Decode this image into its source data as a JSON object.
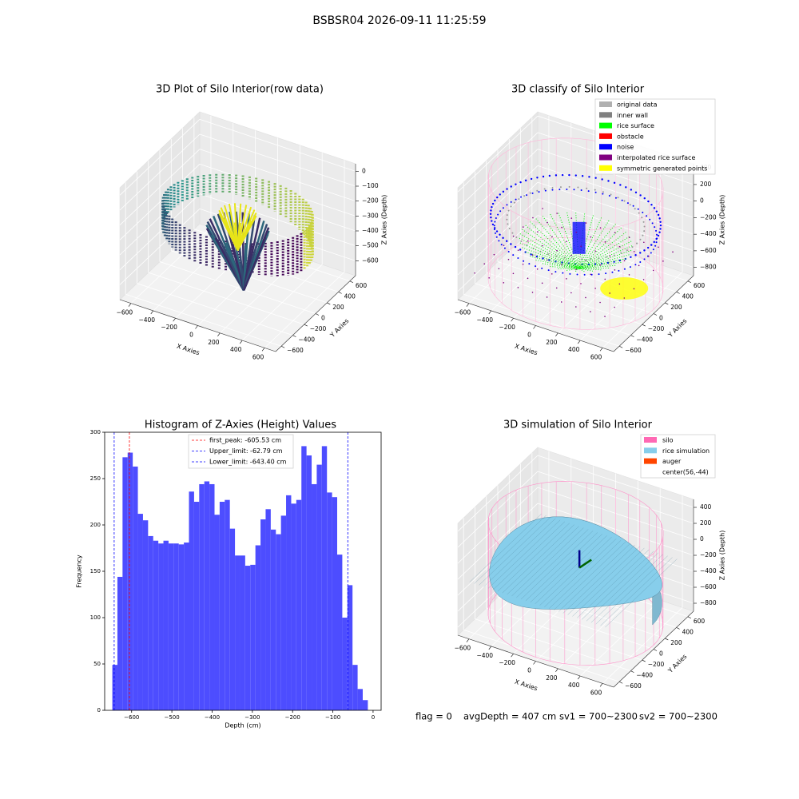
{
  "title": "BSBSR04 2026-09-11 11:25:59",
  "footer": [
    "flag = 0",
    "avgDepth = 407 cm",
    "sv1 = 700~2300",
    "sv2 = 700~2300"
  ],
  "chart_data": [
    {
      "type": "scatter3d",
      "title": "3D Plot of Silo Interior(row data)",
      "xlabel": "X Axies",
      "ylabel": "Y Axies",
      "zlabel": "Z Axies (Depth)",
      "xlim": [
        -700,
        700
      ],
      "ylim": [
        -700,
        700
      ],
      "zlim": [
        -700,
        50
      ],
      "xticks": [
        {
          "value": -600,
          "label": "−600"
        },
        {
          "value": -400,
          "label": "−400"
        },
        {
          "value": -200,
          "label": "−200"
        },
        0,
        200,
        400,
        600
      ],
      "yticks": [
        {
          "value": -600,
          "label": "−600"
        },
        {
          "value": -400,
          "label": "−400"
        },
        {
          "value": -200,
          "label": "−200"
        },
        0,
        200,
        400,
        600
      ],
      "zticks": [
        0,
        {
          "value": -100,
          "label": "−100"
        },
        {
          "value": -200,
          "label": "−200"
        },
        {
          "value": -300,
          "label": "−300"
        },
        {
          "value": -400,
          "label": "−400"
        },
        {
          "value": -500,
          "label": "−500"
        },
        {
          "value": -600,
          "label": "−600"
        }
      ]
    },
    {
      "type": "scatter3d",
      "title": "3D classify of Silo Interior",
      "xlabel": "X Axies",
      "ylabel": "Y Axies",
      "zlabel": "Z Axies (Depth)",
      "xlim": [
        -700,
        700
      ],
      "ylim": [
        -700,
        700
      ],
      "zlim": [
        -900,
        450
      ],
      "xticks": [
        {
          "value": -600,
          "label": "−600"
        },
        {
          "value": -400,
          "label": "−400"
        },
        {
          "value": -200,
          "label": "−200"
        },
        0,
        200,
        400,
        600
      ],
      "yticks": [
        {
          "value": -600,
          "label": "−600"
        },
        {
          "value": -400,
          "label": "−400"
        },
        {
          "value": -200,
          "label": "−200"
        },
        0,
        200,
        400,
        600
      ],
      "zticks": [
        400,
        200,
        0,
        {
          "value": -200,
          "label": "−200"
        },
        {
          "value": -400,
          "label": "−400"
        },
        {
          "value": -600,
          "label": "−600"
        },
        {
          "value": -800,
          "label": "−800"
        }
      ],
      "legend": [
        {
          "name": "original data",
          "color": "#b0b0b0"
        },
        {
          "name": "inner wall",
          "color": "#808080"
        },
        {
          "name": "rice surface",
          "color": "#00ff00"
        },
        {
          "name": "obstacle",
          "color": "#ff0000"
        },
        {
          "name": "noise",
          "color": "#0000ff"
        },
        {
          "name": "interpolated rice surface",
          "color": "#800080"
        },
        {
          "name": "symmetric generated points",
          "color": "#ffff00"
        }
      ]
    },
    {
      "type": "histogram",
      "title": "Histogram of Z-Axies (Height) Values",
      "xlabel": "Depth (cm)",
      "ylabel": "Frequency",
      "color": "#4d4dff",
      "bins": [
        -648,
        -635.3,
        -622.6,
        -609.9,
        -597.2,
        -584.5,
        -571.8,
        -559.1,
        -546.4,
        -533.7,
        -521,
        -508.3,
        -495.6,
        -482.9,
        -470.2,
        -457.5,
        -444.8,
        -432.1,
        -419.4,
        -406.7,
        -394,
        -381.3,
        -368.6,
        -355.9,
        -343.2,
        -330.5,
        -317.8,
        -305.1,
        -292.4,
        -279.7,
        -267,
        -254.3,
        -241.6,
        -228.9,
        -216.2,
        -203.5,
        -190.8,
        -178.1,
        -165.4,
        -152.7,
        -140,
        -127.3,
        -114.6,
        -101.9,
        -89.2,
        -76.5,
        -63.8,
        -51.1,
        -38.4,
        -25.7,
        -13
      ],
      "counts": [
        49,
        144,
        273,
        278,
        263,
        212,
        205,
        188,
        183,
        180,
        183,
        180,
        180,
        179,
        181,
        236,
        225,
        244,
        247,
        244,
        211,
        225,
        227,
        196,
        167,
        167,
        156,
        157,
        178,
        206,
        217,
        195,
        190,
        210,
        232,
        223,
        227,
        285,
        275,
        244,
        265,
        285,
        235,
        230,
        168,
        100,
        135,
        49,
        23,
        11
      ],
      "xlim": [
        -667,
        20
      ],
      "ylim": [
        0,
        300
      ],
      "xticks": [
        {
          "value": -600,
          "label": "−600"
        },
        {
          "value": -500,
          "label": "−500"
        },
        {
          "value": -400,
          "label": "−400"
        },
        {
          "value": -300,
          "label": "−300"
        },
        {
          "value": -200,
          "label": "−200"
        },
        {
          "value": -100,
          "label": "−100"
        },
        0
      ],
      "yticks": [
        0,
        50,
        100,
        150,
        200,
        250,
        300
      ],
      "vlines": [
        {
          "label": "first_peak: -605.53 cm",
          "value": -605.53,
          "color": "#ff0000"
        },
        {
          "label": "Upper_limit: -62.79 cm",
          "value": -62.79,
          "color": "#0000ff"
        },
        {
          "label": "Lower_limit: -643.40 cm",
          "value": -643.4,
          "color": "#0000ff"
        }
      ]
    },
    {
      "type": "scatter3d",
      "title": "3D simulation of Silo Interior",
      "xlabel": "X Axies",
      "ylabel": "Y Axies",
      "zlabel": "Z Axies (Depth)",
      "xlim": [
        -700,
        700
      ],
      "ylim": [
        -700,
        700
      ],
      "zlim": [
        -900,
        500
      ],
      "xticks": [
        {
          "value": -600,
          "label": "−600"
        },
        {
          "value": -400,
          "label": "−400"
        },
        {
          "value": -200,
          "label": "−200"
        },
        0,
        200,
        400,
        600
      ],
      "yticks": [
        {
          "value": -600,
          "label": "−600"
        },
        {
          "value": -400,
          "label": "−400"
        },
        {
          "value": -200,
          "label": "−200"
        },
        0,
        200,
        400,
        600
      ],
      "zticks": [
        400,
        200,
        0,
        {
          "value": -200,
          "label": "−200"
        },
        {
          "value": -400,
          "label": "−400"
        },
        {
          "value": -600,
          "label": "−600"
        },
        {
          "value": -800,
          "label": "−800"
        }
      ],
      "legend": [
        {
          "name": "silo",
          "color": "#ff69b4"
        },
        {
          "name": "rice simulation",
          "color": "#87ceeb"
        },
        {
          "name": "auger",
          "color": "#ff4500"
        },
        {
          "name": "center(56,-44)",
          "color": "#ffffff"
        }
      ]
    }
  ]
}
